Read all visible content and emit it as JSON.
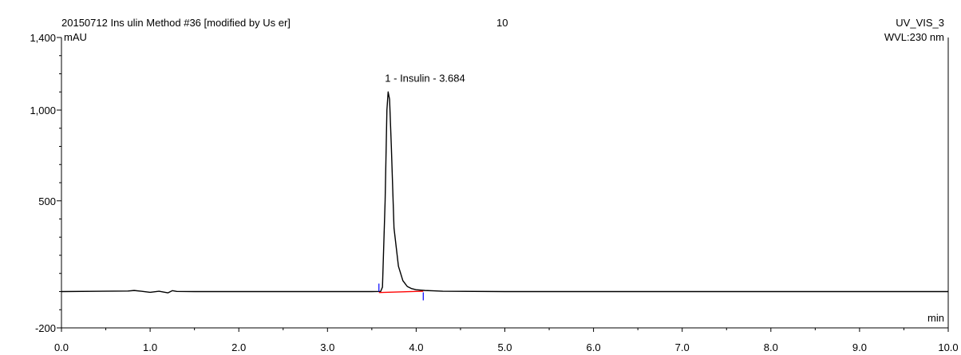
{
  "header": {
    "method": "20150712 Ins ulin Method #36 [modified by Us er]",
    "injection": "10",
    "channel": "UV_VIS_3",
    "wavelength": "WVL:230 nm"
  },
  "chart_data": {
    "type": "line",
    "title": "",
    "xlabel": "min",
    "ylabel": "mAU",
    "xlim": [
      0.0,
      10.0
    ],
    "ylim": [
      -200,
      1400
    ],
    "x_ticks": [
      0.0,
      1.0,
      2.0,
      3.0,
      4.0,
      5.0,
      6.0,
      7.0,
      8.0,
      9.0,
      10.0
    ],
    "x_tick_labels": [
      "0.0",
      "1.0",
      "2.0",
      "3.0",
      "4.0",
      "5.0",
      "6.0",
      "7.0",
      "8.0",
      "9.0",
      "10.0"
    ],
    "y_ticks": [
      -200,
      500,
      1000,
      1400
    ],
    "y_tick_labels": [
      "-200",
      "500",
      "1,000",
      "1,400"
    ],
    "grid": false,
    "series": [
      {
        "color": "#000000",
        "x": [
          0.0,
          0.75,
          0.82,
          0.9,
          1.0,
          1.1,
          1.2,
          1.25,
          1.3,
          1.5,
          2.0,
          3.0,
          3.5,
          3.6,
          3.62,
          3.65,
          3.67,
          3.684,
          3.7,
          3.72,
          3.75,
          3.8,
          3.85,
          3.9,
          3.95,
          4.0,
          4.1,
          4.2,
          4.3,
          5.0,
          6.0,
          7.0,
          8.0,
          9.0,
          10.0
        ],
        "y": [
          0,
          3,
          6,
          2,
          -4,
          2,
          -7,
          5,
          1,
          0,
          0,
          0,
          0,
          1,
          25,
          500,
          1000,
          1100,
          1060,
          800,
          350,
          140,
          60,
          28,
          16,
          10,
          6,
          4,
          2,
          0,
          0,
          0,
          0,
          0,
          0
        ]
      }
    ],
    "baseline": {
      "color": "#ff0000",
      "x": [
        3.58,
        4.08
      ],
      "y": [
        -5,
        2
      ]
    },
    "integration_marks": {
      "color": "#0000ff",
      "x": [
        3.58,
        4.08
      ]
    },
    "annotations": [
      {
        "text": "1 - Insulin - 3.684",
        "x": 3.684,
        "y": 1100
      }
    ]
  }
}
